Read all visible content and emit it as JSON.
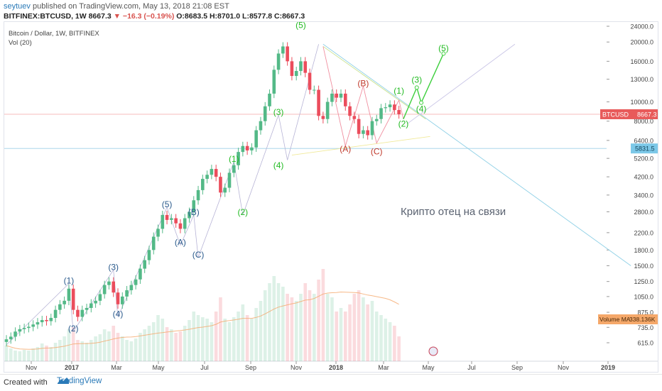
{
  "header": {
    "author": "seytuev",
    "published": "published on TradingView.com, May 13, 2018 21:08 EST",
    "symbol_line": "BITFINEX:BTCUSD, 1W 8667.3",
    "change": "▼ −16.3 (−0.19%)",
    "ohlc": "O:8683.5 H:8701.0 L:8577.8 C:8667.3"
  },
  "footer": {
    "created": "Created with",
    "brand": "TradingView"
  },
  "colors": {
    "up": "#53b987",
    "down": "#eb4d5c",
    "green_wave": "#22bb22",
    "blue_label": "#2a5a8c",
    "red_label": "#c0392b"
  },
  "chart_data": {
    "type": "candlestick",
    "title": "Bitcoin / Dollar, 1W, BITFINEX",
    "volume_label": "Vol (20)",
    "y_scale": "log",
    "y_ticks": [
      615,
      735,
      875,
      1050,
      1250,
      1500,
      1800,
      2200,
      2800,
      3400,
      4200,
      5200,
      6400,
      8000,
      10000,
      13000,
      16000,
      20000,
      24000
    ],
    "x_ticks": [
      "Nov",
      "2017",
      "Mar",
      "May",
      "Jul",
      "Sep",
      "Nov",
      "2018",
      "Mar",
      "May",
      "Jul",
      "Sep",
      "Nov",
      "2019"
    ],
    "price_tag": {
      "label": "BTCUSD",
      "value": "8667.3"
    },
    "level_tag": {
      "value": "5831.5"
    },
    "volume_ma_tag": {
      "label": "Volume MA",
      "value": "338.136K"
    },
    "annotation": "Крипто отец на связи",
    "closes": [
      640,
      660,
      700,
      720,
      730,
      740,
      760,
      780,
      800,
      790,
      820,
      900,
      960,
      1000,
      1150,
      900,
      830,
      900,
      920,
      970,
      1000,
      1080,
      1200,
      1250,
      1100,
      960,
      1050,
      1130,
      1200,
      1280,
      1450,
      1600,
      1800,
      2100,
      2300,
      2700,
      2550,
      2600,
      2450,
      2300,
      2600,
      2800,
      3200,
      3600,
      4100,
      4300,
      4600,
      4200,
      3500,
      3700,
      4400,
      4800,
      5600,
      6000,
      5700,
      5900,
      7200,
      8000,
      9500,
      11000,
      14500,
      17500,
      19000,
      16000,
      13500,
      14300,
      16000,
      14000,
      11500,
      11500,
      8500,
      8200,
      10000,
      11000,
      10500,
      11000,
      9500,
      8500,
      8200,
      6900,
      7200,
      6800,
      8000,
      8200,
      9300,
      9400,
      9700,
      9100,
      8667
    ],
    "waves": [
      {
        "label": "(1)",
        "group": "blue",
        "price": 1220,
        "week": 14
      },
      {
        "label": "(2)",
        "group": "blue",
        "price": 700,
        "week": 15
      },
      {
        "label": "(3)",
        "group": "blue",
        "price": 1430,
        "week": 24
      },
      {
        "label": "(4)",
        "group": "blue",
        "price": 830,
        "week": 25
      },
      {
        "label": "(5)",
        "group": "blue",
        "price": 2950,
        "week": 36
      },
      {
        "label": "(A)",
        "group": "blue",
        "price": 1900,
        "week": 39
      },
      {
        "label": "(B)",
        "group": "blue",
        "price": 2700,
        "week": 42
      },
      {
        "label": "(C)",
        "group": "blue",
        "price": 1650,
        "week": 43
      },
      {
        "label": "(1)",
        "group": "green",
        "price": 5000,
        "week": 51
      },
      {
        "label": "(2)",
        "group": "green",
        "price": 2700,
        "week": 53
      },
      {
        "label": "(3)",
        "group": "green",
        "price": 8600,
        "week": 61
      },
      {
        "label": "(4)",
        "group": "green",
        "price": 4650,
        "week": 61
      },
      {
        "label": "(5)",
        "group": "green",
        "price": 23500,
        "week": 66
      },
      {
        "label": "(A)",
        "group": "red",
        "price": 5600,
        "week": 76
      },
      {
        "label": "(B)",
        "group": "red",
        "price": 12000,
        "week": 80
      },
      {
        "label": "(C)",
        "group": "red",
        "price": 5450,
        "week": 83
      },
      {
        "label": "(1)",
        "group": "green",
        "price": 11000,
        "week": 88
      },
      {
        "label": "(2)",
        "group": "green",
        "price": 7500,
        "week": 89
      },
      {
        "label": "(3)",
        "group": "green",
        "price": 12500,
        "week": 92
      },
      {
        "label": "(4)",
        "group": "green",
        "price": 8900,
        "week": 93
      },
      {
        "label": "(5)",
        "group": "green",
        "price": 18000,
        "week": 98
      }
    ]
  }
}
